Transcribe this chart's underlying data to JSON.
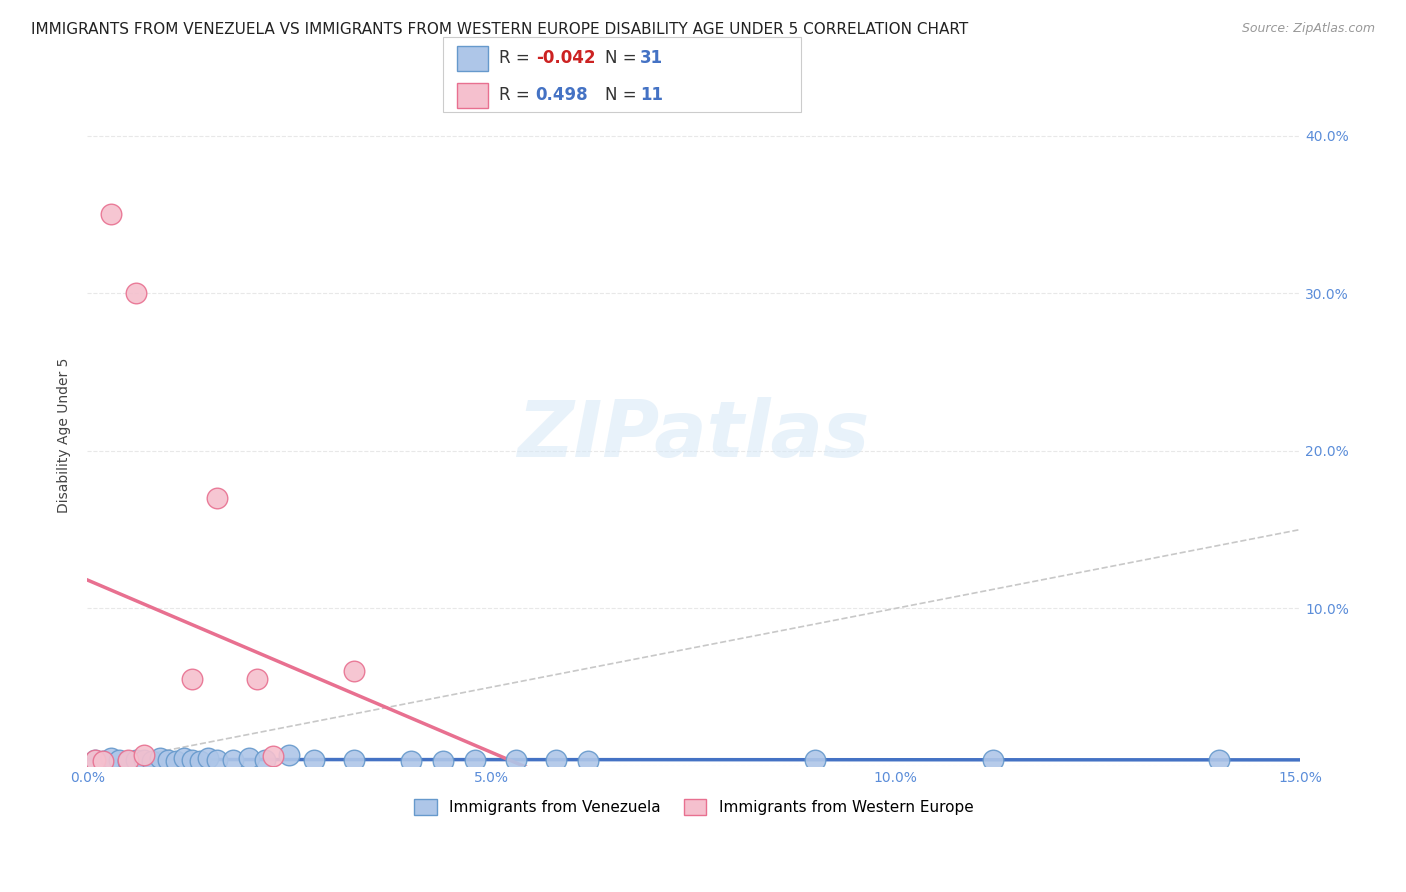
{
  "title": "IMMIGRANTS FROM VENEZUELA VS IMMIGRANTS FROM WESTERN EUROPE DISABILITY AGE UNDER 5 CORRELATION CHART",
  "source": "Source: ZipAtlas.com",
  "ylabel": "Disability Age Under 5",
  "xlim": [
    0.0,
    0.15
  ],
  "ylim": [
    0.0,
    0.42
  ],
  "xticks": [
    0.0,
    0.05,
    0.1,
    0.15
  ],
  "xtick_labels": [
    "0.0%",
    "5.0%",
    "10.0%",
    "15.0%"
  ],
  "yticks": [
    0.0,
    0.1,
    0.2,
    0.3,
    0.4
  ],
  "ytick_labels": [
    "",
    "10.0%",
    "20.0%",
    "30.0%",
    "40.0%"
  ],
  "venezuela_R": -0.042,
  "venezuela_N": 31,
  "western_europe_R": 0.498,
  "western_europe_N": 11,
  "venezuela_color": "#aec6e8",
  "venezuela_edge_color": "#6699cc",
  "western_europe_color": "#f5c0ce",
  "western_europe_edge_color": "#e87090",
  "venezuela_line_color": "#4472c4",
  "western_europe_line_color": "#e87090",
  "identity_line_color": "#c8c8c8",
  "background_color": "#ffffff",
  "grid_color": "#e8e8e8",
  "venezuela_points_x": [
    0.001,
    0.002,
    0.003,
    0.004,
    0.005,
    0.006,
    0.007,
    0.008,
    0.009,
    0.01,
    0.011,
    0.012,
    0.013,
    0.014,
    0.015,
    0.016,
    0.018,
    0.02,
    0.022,
    0.025,
    0.028,
    0.033,
    0.04,
    0.044,
    0.048,
    0.053,
    0.058,
    0.062,
    0.09,
    0.112,
    0.14
  ],
  "venezuela_points_y": [
    0.004,
    0.003,
    0.005,
    0.004,
    0.003,
    0.004,
    0.004,
    0.003,
    0.005,
    0.004,
    0.003,
    0.005,
    0.004,
    0.003,
    0.005,
    0.004,
    0.004,
    0.005,
    0.004,
    0.007,
    0.004,
    0.004,
    0.003,
    0.003,
    0.004,
    0.004,
    0.004,
    0.003,
    0.004,
    0.004,
    0.004
  ],
  "western_europe_points_x": [
    0.001,
    0.002,
    0.003,
    0.005,
    0.006,
    0.007,
    0.013,
    0.016,
    0.021,
    0.023,
    0.033
  ],
  "western_europe_points_y": [
    0.004,
    0.003,
    0.35,
    0.004,
    0.3,
    0.007,
    0.055,
    0.17,
    0.055,
    0.006,
    0.06
  ],
  "legend_label_venezuela": "Immigrants from Venezuela",
  "legend_label_western_europe": "Immigrants from Western Europe",
  "title_fontsize": 11,
  "axis_label_fontsize": 10,
  "tick_fontsize": 10,
  "legend_fontsize": 11,
  "r_label_fontsize": 12,
  "watermark_text": "ZIPatlas"
}
